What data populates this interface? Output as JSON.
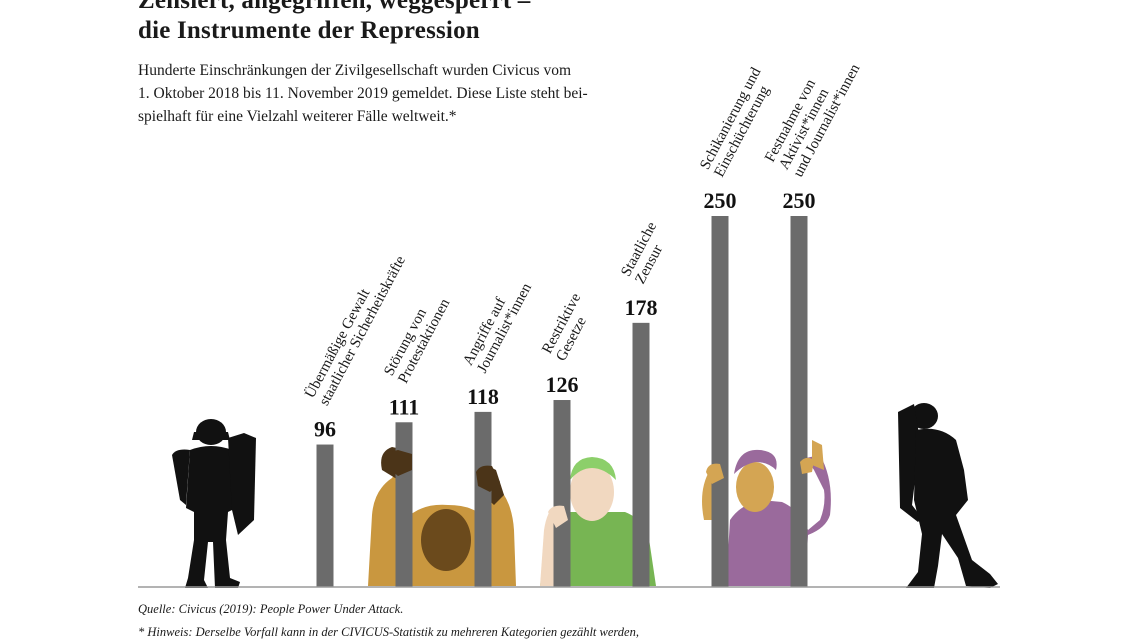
{
  "header": {
    "title_lines": [
      "Zensiert, angegriffen, weggesperrt –",
      "die Instrumente der Repression"
    ],
    "subtitle_lines": [
      "Hunderte Einschränkungen der Zivilgesellschaft wurden Civicus vom",
      "1. Oktober 2018 bis 11. November 2019 gemeldet. Diese Liste steht bei-",
      "spielhaft für eine Vielzahl weiterer Fälle weltweit.*"
    ]
  },
  "chart_data": {
    "type": "bar",
    "title": "Zensiert, angegriffen, weggesperrt – die Instrumente der Repression",
    "categories": [
      "Übermäßige Gewalt staatlicher Sicherheitskräfte",
      "Störung von Protestaktionen",
      "Angriffe auf Journalist*innen",
      "Restriktive Gesetze",
      "Staatliche Zensur",
      "Schikanierung und Einschüchterung",
      "Festnahme von Aktivist*innen und Journalist*innen"
    ],
    "label_lines": [
      [
        "Übermäßige Gewalt",
        "staatlicher Sicherheitskräfte"
      ],
      [
        "Störung von",
        "Protestaktionen"
      ],
      [
        "Angriffe auf",
        "Journalist*innen"
      ],
      [
        "Restriktive",
        "Gesetze"
      ],
      [
        "Staatliche",
        "Zensur"
      ],
      [
        "Schikanierung und",
        "Einschüchterung"
      ],
      [
        "Festnahme von",
        "Aktivist*innen",
        "und Journalist*innen"
      ]
    ],
    "values": [
      96,
      111,
      118,
      126,
      178,
      250,
      250
    ],
    "ylim": [
      0,
      250
    ],
    "grid": false,
    "xlabel": "",
    "ylabel": ""
  },
  "colors": {
    "bar": "#6b6b6b",
    "baseline": "#9a9a9a",
    "silhouette": "#111111",
    "figure_ochre": "#c9973f",
    "figure_ochre_head": "#6b4a1c",
    "figure_green_shirt": "#77b553",
    "figure_green_hair": "#8ccf6a",
    "figure_green_skin": "#f1d8c0",
    "figure_purple": "#9a6a9c",
    "figure_purple_skin": "#d4a553",
    "dark_hands": "#4b3418"
  },
  "icons": [
    "police-officer-left-icon",
    "prisoner-ochre-icon",
    "prisoner-green-icon",
    "prisoner-purple-icon",
    "police-officer-right-icon"
  ],
  "footer": {
    "source": "Quelle: Civicus (2019): People Power Under Attack.",
    "note": "* Hinweis: Derselbe Vorfall kann in der CIVICUS-Statistik zu mehreren Kategorien gezählt werden,"
  }
}
